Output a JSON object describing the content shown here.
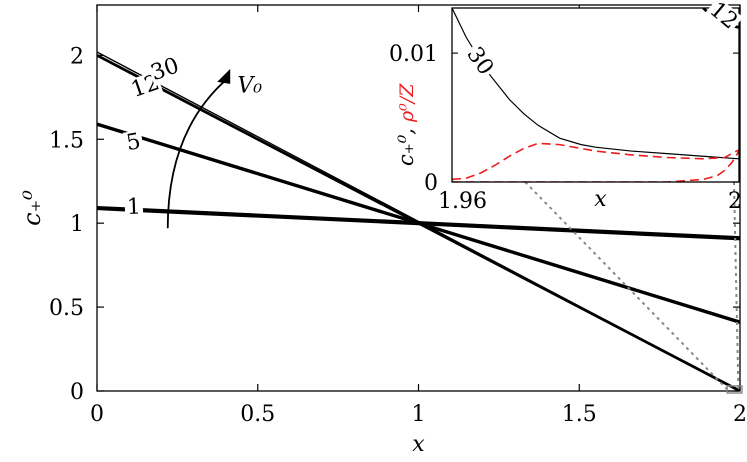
{
  "chart_data": [
    {
      "type": "line",
      "xlabel": "x",
      "ylabel": "c₊⁰",
      "xlim": [
        0,
        2
      ],
      "ylim": [
        0,
        2.3
      ],
      "xticks": [
        0,
        0.5,
        1,
        1.5,
        2
      ],
      "xtick_labels": [
        "0",
        "0.5",
        "1",
        "1.5",
        "2"
      ],
      "yticks": [
        0,
        0.5,
        1,
        1.5,
        2
      ],
      "ytick_labels": [
        "0",
        "0.5",
        "1",
        "1.5",
        "2"
      ],
      "grid": false,
      "series": [
        {
          "name": "1",
          "x": [
            0,
            2
          ],
          "y": [
            1.09,
            0.91
          ],
          "width": 4.2
        },
        {
          "name": "5",
          "x": [
            0,
            2
          ],
          "y": [
            1.59,
            0.41
          ],
          "width": 3.4
        },
        {
          "name": "12",
          "x": [
            0,
            2
          ],
          "y": [
            2.0,
            0.0
          ],
          "width": 2.8
        },
        {
          "name": "30",
          "x": [
            0,
            2
          ],
          "y": [
            2.02,
            0.0
          ],
          "width": 1.4
        }
      ],
      "arrow_label": "V₀"
    },
    {
      "type": "line",
      "xlabel": "x",
      "ylabel_black": "c₊⁰,",
      "ylabel_red": "ρ⁰/Z",
      "xlim": [
        1.96,
        2
      ],
      "ylim": [
        0,
        0.0135
      ],
      "xtick_labels": [
        "1.96",
        "2"
      ],
      "ytick_labels": [
        "0",
        "0.01"
      ],
      "series": [
        {
          "name": "30",
          "color": "#000000",
          "dash": false,
          "x": [
            1.96,
            1.962,
            1.965,
            1.968,
            1.97,
            1.972,
            1.975,
            1.978,
            1.98,
            1.985,
            1.99,
            1.995,
            2.0
          ],
          "y": [
            0.0135,
            0.0112,
            0.0085,
            0.0064,
            0.0053,
            0.0044,
            0.0034,
            0.0029,
            0.0027,
            0.0024,
            0.0022,
            0.002,
            0.0018
          ]
        },
        {
          "name": "12",
          "color": "#000000",
          "dash": false,
          "x": [
            1.995,
            1.996,
            1.997,
            1.998,
            1.999,
            2.0
          ],
          "y": [
            0.0135,
            0.013,
            0.0126,
            0.0123,
            0.0121,
            0.012
          ]
        },
        {
          "name": "30",
          "color": "#ee1c1c",
          "dash": true,
          "x": [
            1.96,
            1.962,
            1.964,
            1.966,
            1.968,
            1.97,
            1.972,
            1.975,
            1.978,
            1.98,
            1.985,
            1.99,
            1.995,
            1.998,
            2.0
          ],
          "y": [
            0.0002,
            0.0003,
            0.0007,
            0.0013,
            0.002,
            0.0026,
            0.003,
            0.0029,
            0.0026,
            0.0024,
            0.0021,
            0.0019,
            0.0018,
            0.0019,
            0.0025
          ]
        },
        {
          "name": "12",
          "color": "#ee1c1c",
          "dash": true,
          "x": [
            1.96,
            1.99,
            1.995,
            1.997,
            1.998,
            1.999,
            2.0
          ],
          "y": [
            0.0,
            0.0,
            0.0002,
            0.0005,
            0.0009,
            0.0015,
            0.0024
          ]
        }
      ]
    }
  ]
}
